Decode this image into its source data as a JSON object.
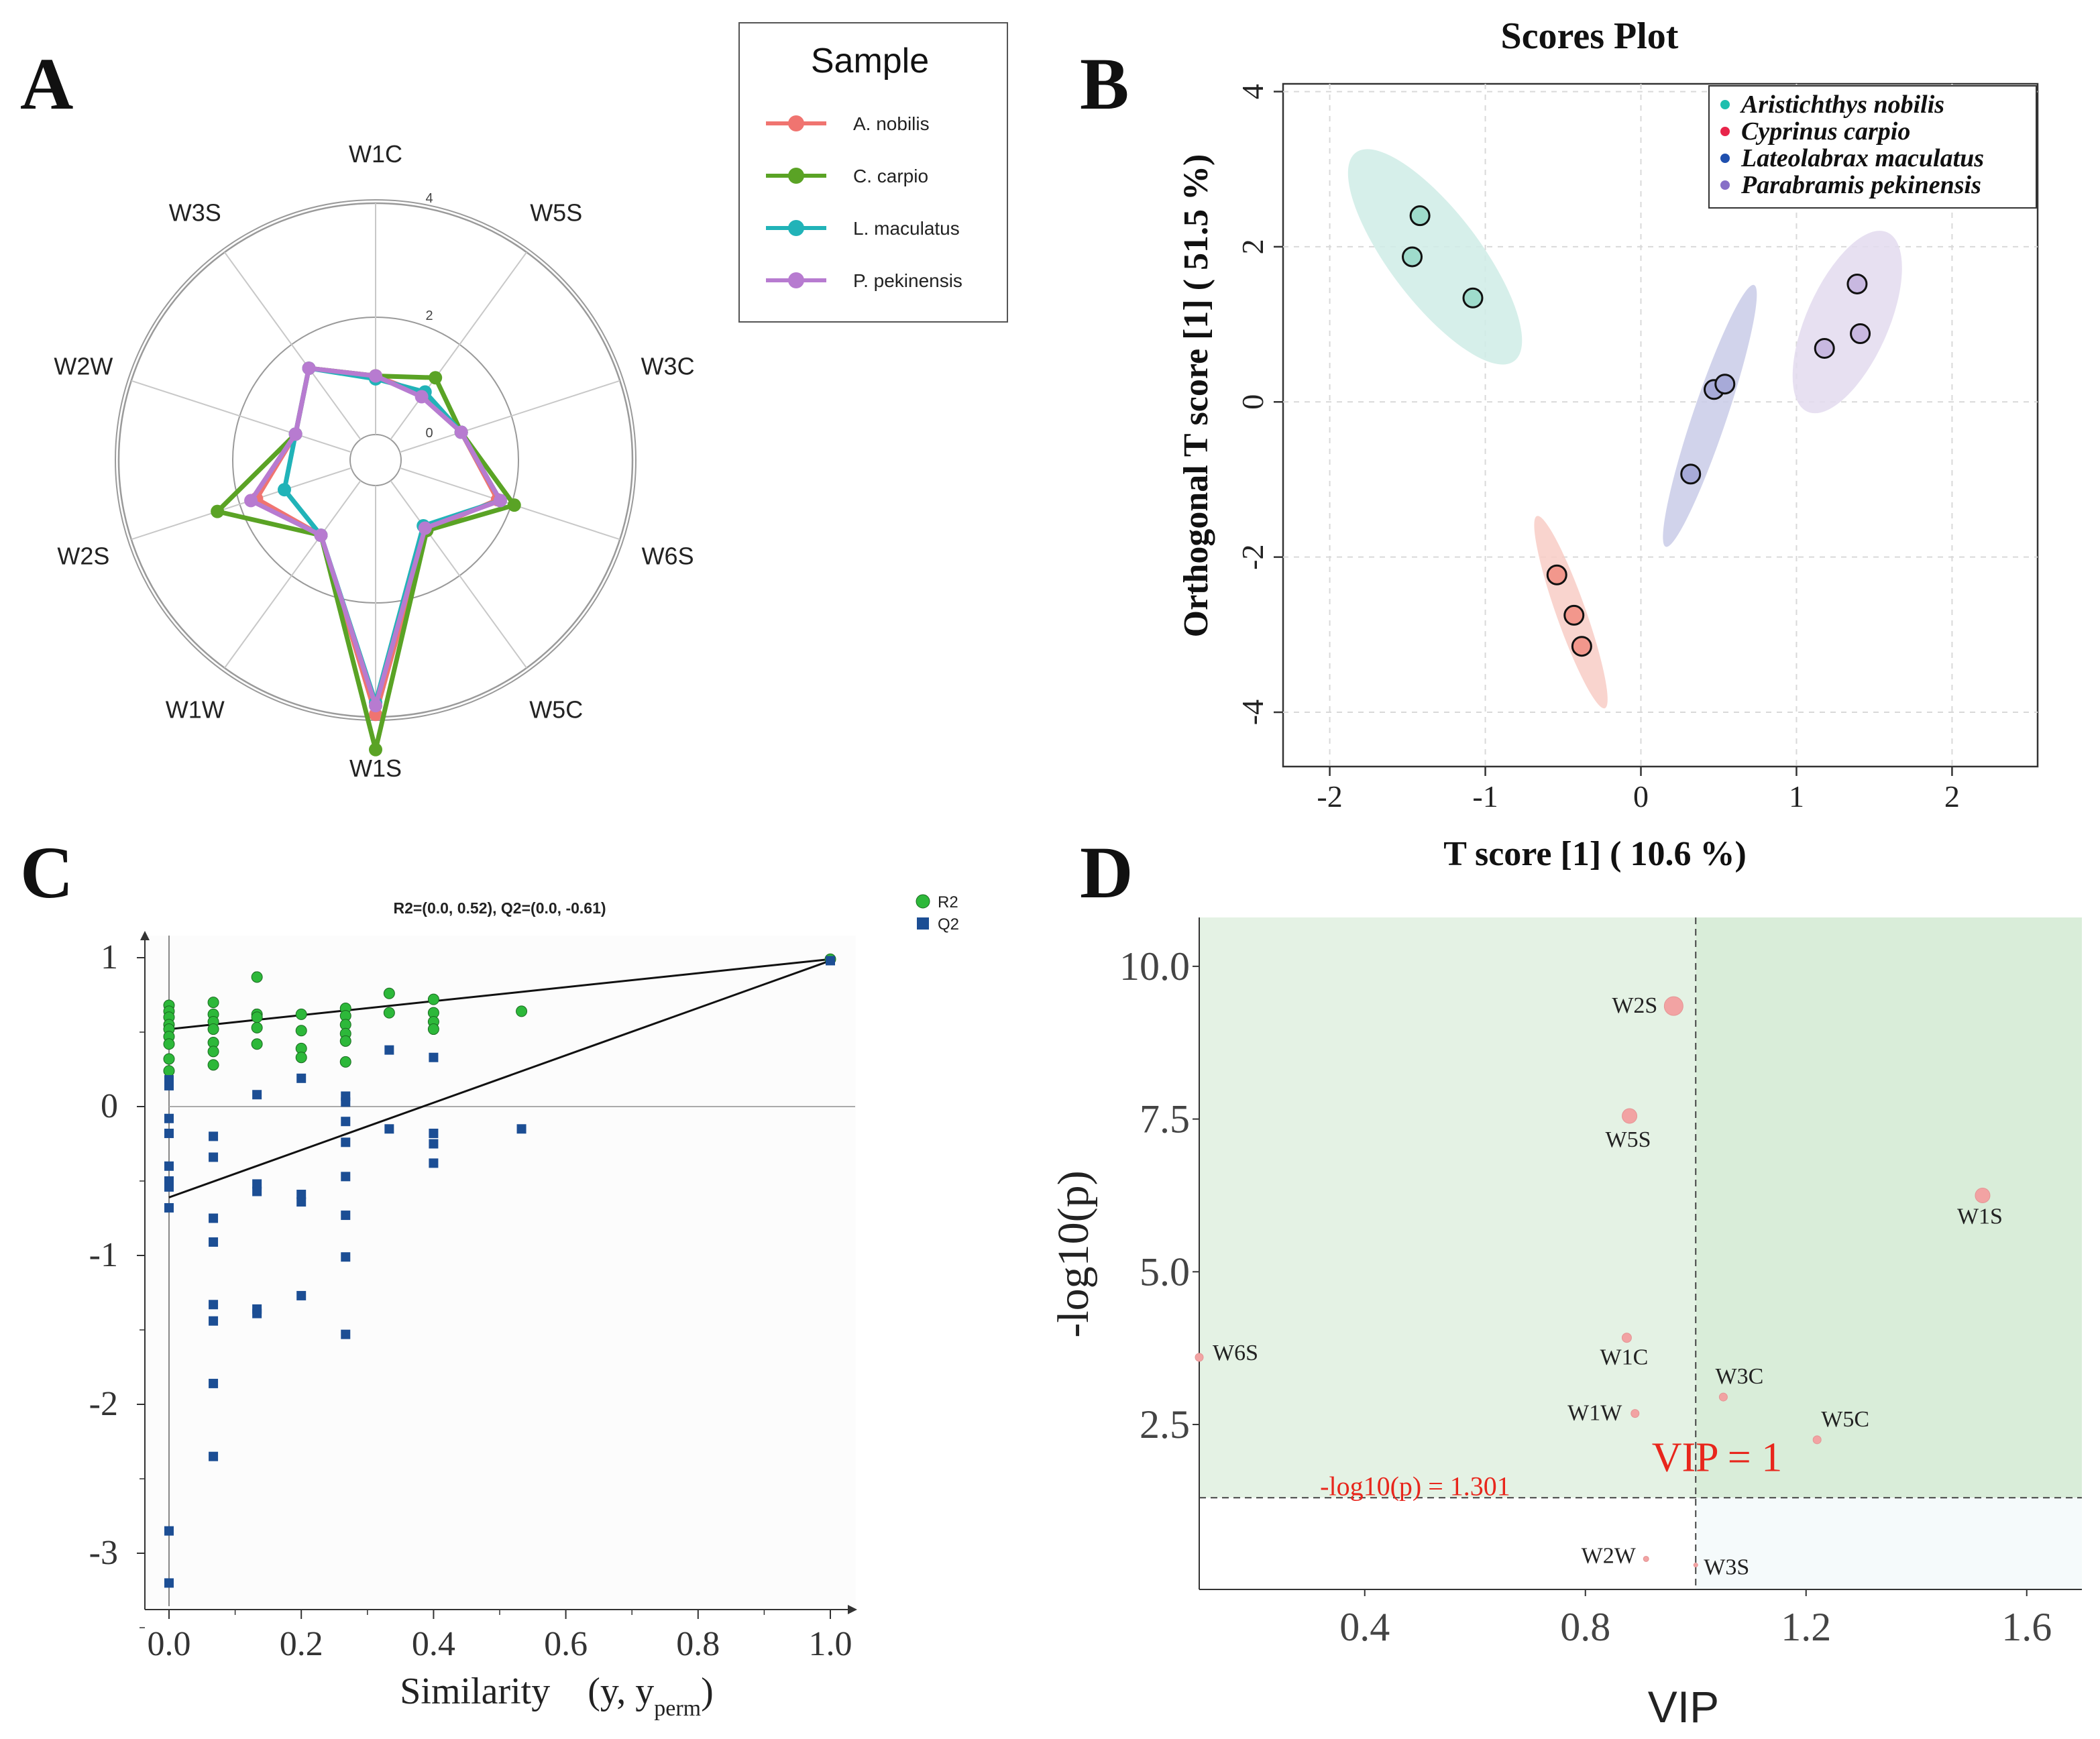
{
  "panels": {
    "A": {
      "letter": "A"
    },
    "B": {
      "letter": "B"
    },
    "C": {
      "letter": "C"
    },
    "D": {
      "letter": "D"
    }
  },
  "chart_data": [
    {
      "id": "A",
      "type": "radar",
      "axes": [
        "W1C",
        "W5S",
        "W3C",
        "W6S",
        "W5C",
        "W1S",
        "W1W",
        "W2S",
        "W2W",
        "W3S"
      ],
      "rmax": 4,
      "ring_labels": [
        "0",
        "2",
        "4"
      ],
      "legend_title": "Sample",
      "series": [
        {
          "name": "A. nobilis",
          "color": "#f07470",
          "values": [
            1.0,
            0.95,
            1.1,
            1.75,
            1.05,
            3.9,
            1.15,
            1.7,
            1.0,
            1.5
          ]
        },
        {
          "name": "C. carpio",
          "color": "#5aa325",
          "values": [
            1.0,
            1.3,
            1.1,
            2.05,
            1.05,
            4.5,
            1.15,
            2.4,
            1.0,
            1.5
          ]
        },
        {
          "name": "L. maculatus",
          "color": "#21b3b8",
          "values": [
            0.95,
            1.0,
            1.1,
            1.8,
            0.95,
            3.7,
            1.15,
            1.2,
            1.0,
            1.5
          ]
        },
        {
          "name": "P. pekinensis",
          "color": "#b77bd0",
          "values": [
            1.0,
            0.9,
            1.1,
            1.8,
            1.0,
            3.75,
            1.15,
            1.8,
            1.0,
            1.5
          ]
        }
      ]
    },
    {
      "id": "B",
      "type": "scatter",
      "title": "Scores Plot",
      "xlabel": "T score [1] ( 10.6 %)",
      "ylabel": "Orthogonal T score [1] ( 51.5 %)",
      "xlim": [
        -2.3,
        2.55
      ],
      "ylim": [
        -4.7,
        4.1
      ],
      "xticks": [
        "-2",
        "-1",
        "0",
        "1",
        "2"
      ],
      "yticks": [
        "-4",
        "-2",
        "0",
        "2",
        "4"
      ],
      "series": [
        {
          "name": "Aristichthys nobilis",
          "legend_color": "#1fbfae",
          "fill": "#9fdccc",
          "ellipse_color": "#cfece6",
          "points": [
            [
              -1.42,
              2.4
            ],
            [
              -1.47,
              1.87
            ],
            [
              -1.08,
              1.34
            ]
          ]
        },
        {
          "name": "Cyprinus carpio",
          "legend_color": "#e8244a",
          "fill": "#f2978c",
          "ellipse_color": "#f8cdc6",
          "points": [
            [
              -0.54,
              -2.23
            ],
            [
              -0.43,
              -2.75
            ],
            [
              -0.38,
              -3.15
            ]
          ]
        },
        {
          "name": "Lateolabrax maculatus",
          "legend_color": "#1f4fae",
          "fill": "#a7aad8",
          "ellipse_color": "#c9cbe8",
          "points": [
            [
              0.47,
              0.16
            ],
            [
              0.54,
              0.23
            ],
            [
              0.32,
              -0.93
            ]
          ]
        },
        {
          "name": "Parabramis pekinensis",
          "legend_color": "#8870c7",
          "fill": "#c8b8e0",
          "ellipse_color": "#e3dbef",
          "points": [
            [
              1.39,
              1.52
            ],
            [
              1.41,
              0.88
            ],
            [
              1.18,
              0.69
            ]
          ]
        }
      ]
    },
    {
      "id": "C",
      "type": "scatter",
      "title": "R2=(0.0, 0.52), Q2=(0.0, -0.61)",
      "xlabel": "Similarity　(y, y",
      "xlabel_sub": "perm",
      "xlabel_end": ")",
      "xlim": [
        -0.04,
        1.04
      ],
      "ylim": [
        -3.4,
        1.2
      ],
      "xticks": [
        "0.0",
        "0.2",
        "0.4",
        "0.6",
        "0.8",
        "1.0"
      ],
      "yticks": [
        "1",
        "0",
        "-1",
        "-2",
        "-3"
      ],
      "legend": [
        {
          "name": "R2",
          "color": "#2db83a"
        },
        {
          "name": "Q2",
          "color": "#1c4e94"
        }
      ],
      "R2_points": [
        [
          0,
          0.68
        ],
        [
          0,
          0.64
        ],
        [
          0,
          0.6
        ],
        [
          0,
          0.55
        ],
        [
          0,
          0.52
        ],
        [
          0,
          0.47
        ],
        [
          0,
          0.42
        ],
        [
          0,
          0.32
        ],
        [
          0,
          0.24
        ],
        [
          0.067,
          0.7
        ],
        [
          0.067,
          0.62
        ],
        [
          0.067,
          0.57
        ],
        [
          0.067,
          0.52
        ],
        [
          0.067,
          0.43
        ],
        [
          0.067,
          0.37
        ],
        [
          0.067,
          0.28
        ],
        [
          0.133,
          0.87
        ],
        [
          0.133,
          0.62
        ],
        [
          0.133,
          0.6
        ],
        [
          0.133,
          0.53
        ],
        [
          0.133,
          0.42
        ],
        [
          0.2,
          0.62
        ],
        [
          0.2,
          0.51
        ],
        [
          0.2,
          0.39
        ],
        [
          0.2,
          0.33
        ],
        [
          0.267,
          0.66
        ],
        [
          0.267,
          0.61
        ],
        [
          0.267,
          0.55
        ],
        [
          0.267,
          0.49
        ],
        [
          0.267,
          0.44
        ],
        [
          0.267,
          0.3
        ],
        [
          0.333,
          0.76
        ],
        [
          0.333,
          0.63
        ],
        [
          0.4,
          0.72
        ],
        [
          0.4,
          0.63
        ],
        [
          0.4,
          0.57
        ],
        [
          0.4,
          0.52
        ],
        [
          0.533,
          0.64
        ],
        [
          1.0,
          0.99
        ]
      ],
      "Q2_points": [
        [
          0,
          0.18
        ],
        [
          0,
          0.14
        ],
        [
          0,
          -0.08
        ],
        [
          0,
          -0.18
        ],
        [
          0,
          -0.4
        ],
        [
          0,
          -0.5
        ],
        [
          0,
          -0.54
        ],
        [
          0,
          -0.68
        ],
        [
          0,
          -2.85
        ],
        [
          0,
          -3.2
        ],
        [
          0.067,
          -0.2
        ],
        [
          0.067,
          -0.34
        ],
        [
          0.067,
          -0.75
        ],
        [
          0.067,
          -0.91
        ],
        [
          0.067,
          -1.33
        ],
        [
          0.067,
          -1.44
        ],
        [
          0.067,
          -1.86
        ],
        [
          0.067,
          -2.35
        ],
        [
          0.133,
          0.08
        ],
        [
          0.133,
          -0.52
        ],
        [
          0.133,
          -0.57
        ],
        [
          0.133,
          -1.36
        ],
        [
          0.133,
          -1.39
        ],
        [
          0.2,
          0.19
        ],
        [
          0.2,
          -0.59
        ],
        [
          0.2,
          -0.64
        ],
        [
          0.2,
          -1.27
        ],
        [
          0.267,
          0.07
        ],
        [
          0.267,
          0.03
        ],
        [
          0.267,
          -0.1
        ],
        [
          0.267,
          -0.24
        ],
        [
          0.267,
          -0.47
        ],
        [
          0.267,
          -0.73
        ],
        [
          0.267,
          -1.01
        ],
        [
          0.267,
          -1.53
        ],
        [
          0.333,
          0.38
        ],
        [
          0.333,
          -0.15
        ],
        [
          0.4,
          0.33
        ],
        [
          0.4,
          -0.18
        ],
        [
          0.4,
          -0.25
        ],
        [
          0.4,
          -0.38
        ],
        [
          0.533,
          -0.15
        ],
        [
          1.0,
          0.98
        ]
      ],
      "R2_line": [
        [
          0,
          0.52
        ],
        [
          1.0,
          0.99
        ]
      ],
      "Q2_line": [
        [
          0,
          -0.61
        ],
        [
          1.0,
          0.98
        ]
      ]
    },
    {
      "id": "D",
      "type": "scatter",
      "xlabel": "VIP",
      "ylabel": "-log10(p)",
      "xlim": [
        0.1,
        1.7
      ],
      "ylim": [
        -0.2,
        10.8
      ],
      "xticks": [
        "0.4",
        "0.8",
        "1.2",
        "1.6"
      ],
      "yticks": [
        "2.5",
        "5.0",
        "7.5",
        "10.0"
      ],
      "vip_threshold": 1,
      "p_threshold": 1.301,
      "vip_label": "VIP = 1",
      "p_label": "-log10(p) = 1.301",
      "points": [
        {
          "name": "W2S",
          "vip": 0.96,
          "logp": 9.35,
          "size": 14
        },
        {
          "name": "W5S",
          "vip": 0.88,
          "logp": 7.55,
          "size": 11
        },
        {
          "name": "W1S",
          "vip": 1.52,
          "logp": 6.25,
          "size": 11
        },
        {
          "name": "W6S",
          "vip": 0.1,
          "logp": 3.6,
          "size": 6
        },
        {
          "name": "W1C",
          "vip": 0.875,
          "logp": 3.92,
          "size": 7
        },
        {
          "name": "W3C",
          "vip": 1.05,
          "logp": 2.95,
          "size": 6
        },
        {
          "name": "W1W",
          "vip": 0.89,
          "logp": 2.68,
          "size": 6
        },
        {
          "name": "W5C",
          "vip": 1.22,
          "logp": 2.25,
          "size": 6
        },
        {
          "name": "W2W",
          "vip": 0.91,
          "logp": 0.3,
          "size": 4
        },
        {
          "name": "W3S",
          "vip": 1.0,
          "logp": 0.2,
          "size": 3
        }
      ]
    }
  ]
}
